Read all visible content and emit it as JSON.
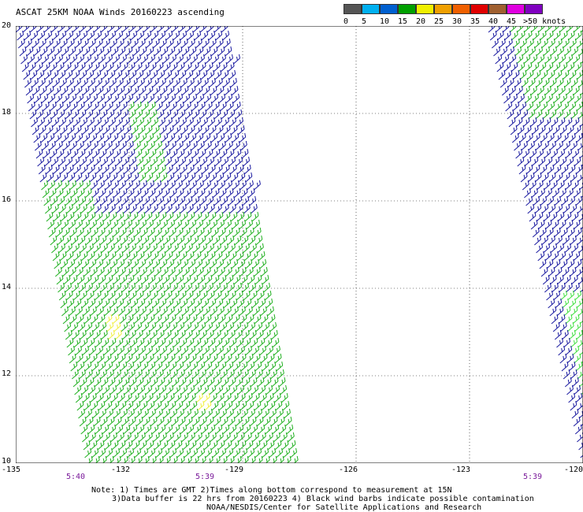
{
  "title": "ASCAT 25KM NOAA Winds 20160223 ascending",
  "legend": {
    "swatches": [
      {
        "color": "#555555"
      },
      {
        "color": "#00b0f0"
      },
      {
        "color": "#0060d0"
      },
      {
        "color": "#00a000"
      },
      {
        "color": "#f0f000"
      },
      {
        "color": "#f0a000"
      },
      {
        "color": "#f06000"
      },
      {
        "color": "#e00000"
      },
      {
        "color": "#a06030"
      },
      {
        "color": "#e000e0"
      },
      {
        "color": "#8000c0"
      }
    ],
    "labels": [
      "0",
      "5",
      "10",
      "15",
      "20",
      "25",
      "30",
      "35",
      "40",
      "45",
      ">50 knots"
    ]
  },
  "lat_labels": [
    "20",
    "18",
    "16",
    "14",
    "12",
    "10"
  ],
  "lon_labels": [
    "-135",
    "-132",
    "-129",
    "-126",
    "-123",
    "-120"
  ],
  "time_labels": [
    "5:40",
    "5:39",
    "5:39"
  ],
  "notes": [
    "Note: 1) Times are GMT 2)Times along bottom correspond to measurement at 15N",
    "3)Data buffer is 22 hrs from 20160223 4) Black wind barbs indicate possible contamination",
    "NOAA/NESDIS/Center for Satellite Applications and Research"
  ],
  "colors": {
    "navy": "#1a1aa0",
    "blue": "#3a6ad8",
    "green": "#20b020",
    "darkgreen": "#107a10",
    "lightgreen": "#40e040",
    "yellow": "#f0f040"
  }
}
